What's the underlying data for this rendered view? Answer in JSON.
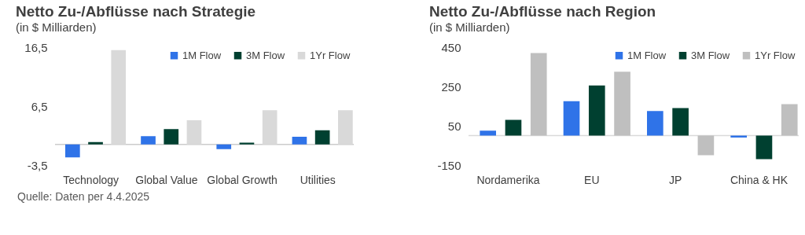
{
  "chart_data": [
    {
      "type": "bar",
      "title": "Netto Zu-/Abflüsse nach Strategie",
      "subtitle": "(in $ Milliarden)",
      "categories": [
        "Technology",
        "Global Value",
        "Global Growth",
        "Utilities"
      ],
      "series": [
        {
          "name": "1M Flow",
          "color": "#2f73e8",
          "values": [
            -2.2,
            1.4,
            -0.8,
            1.3
          ]
        },
        {
          "name": "3M Flow",
          "color": "#004030",
          "values": [
            0.4,
            2.6,
            0.3,
            2.4
          ]
        },
        {
          "name": "1Yr Flow",
          "color": "#d9d9d9",
          "values": [
            16.0,
            4.1,
            5.8,
            5.8
          ]
        }
      ],
      "ylim": [
        -3.5,
        16.5
      ],
      "yticks": [
        {
          "value": -3.5,
          "label": "-3,5"
        },
        {
          "value": 6.5,
          "label": "6,5"
        },
        {
          "value": 16.5,
          "label": "16,5"
        }
      ],
      "ref_lines": [
        {
          "axis": "y",
          "value": 0,
          "color": "#cccccc"
        }
      ],
      "legend": "top right",
      "annotations": [
        "Quelle: Daten per 4.4.2025"
      ]
    },
    {
      "type": "bar",
      "title": "Netto Zu-/Abflüsse nach Region",
      "subtitle": "(in $ Milliarden)",
      "categories": [
        "Nordamerika",
        "EU",
        "JP",
        "China & HK"
      ],
      "series": [
        {
          "name": "1M Flow",
          "color": "#2f73e8",
          "values": [
            25,
            175,
            125,
            -10
          ]
        },
        {
          "name": "3M Flow",
          "color": "#004030",
          "values": [
            80,
            255,
            140,
            -120
          ]
        },
        {
          "name": "1Yr Flow",
          "color": "#bfbfbf",
          "values": [
            420,
            325,
            -100,
            160
          ]
        }
      ],
      "ylim": [
        -150,
        450
      ],
      "yticks": [
        -150,
        50,
        250,
        450
      ],
      "ref_lines": [
        {
          "axis": "y",
          "value": 0,
          "color": "#d9d9d9"
        }
      ],
      "legend": "top right"
    }
  ]
}
